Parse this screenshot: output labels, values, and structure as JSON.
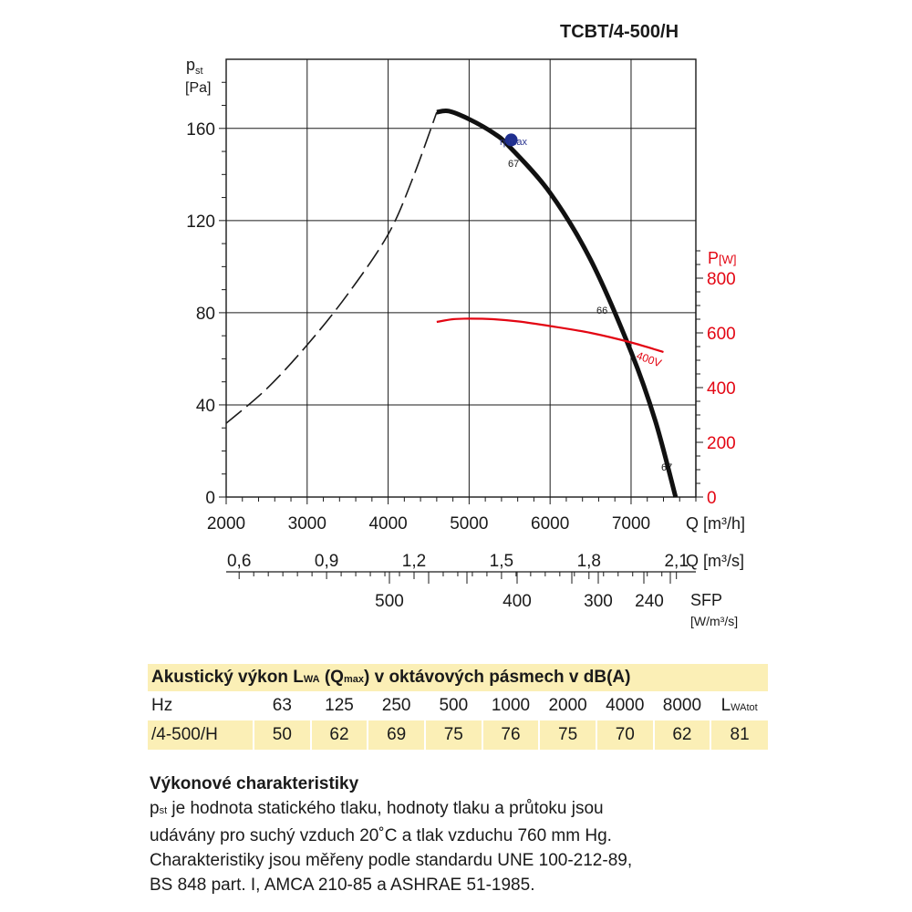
{
  "model_title": "TCBT/4-500/H",
  "chart_data": {
    "type": "line",
    "title": "TCBT/4-500/H",
    "y_left": {
      "label": "p",
      "label_sub": "st",
      "unit": "[Pa]",
      "ticks": [
        "0",
        "40",
        "80",
        "120",
        "160"
      ],
      "range": [
        0,
        190
      ]
    },
    "y_right": {
      "label": "P",
      "unit": "[W]",
      "ticks": [
        "0",
        "200",
        "400",
        "600",
        "800"
      ],
      "range": [
        0,
        800
      ],
      "color": "#e30613"
    },
    "x_main": {
      "label": "Q [m³/h]",
      "ticks": [
        "2000",
        "3000",
        "4000",
        "5000",
        "6000",
        "7000"
      ],
      "range": [
        2000,
        7800
      ]
    },
    "x_second": {
      "label": "Q [m³/s]",
      "ticks": [
        "0,6",
        "0,9",
        "1,2",
        "1,5",
        "1,8",
        "2,1"
      ]
    },
    "x_third": {
      "label": "SFP",
      "unit": "[W/m³/s]",
      "ticks": [
        "500",
        "400",
        "300",
        "240"
      ]
    },
    "grid": true,
    "series": [
      {
        "style": "dashed",
        "color": "#1a1a1a",
        "points": [
          [
            2000,
            32
          ],
          [
            2500,
            47
          ],
          [
            3000,
            66
          ],
          [
            3500,
            88
          ],
          [
            4000,
            114
          ],
          [
            4300,
            138
          ],
          [
            4600,
            167
          ]
        ]
      },
      {
        "style": "solid",
        "color": "#111111",
        "points": [
          [
            4600,
            167
          ],
          [
            4750,
            167.5
          ],
          [
            5000,
            164
          ],
          [
            5300,
            158
          ],
          [
            5500,
            152
          ],
          [
            6000,
            132
          ],
          [
            6500,
            103
          ],
          [
            7000,
            63
          ],
          [
            7300,
            33
          ],
          [
            7550,
            0
          ]
        ]
      },
      {
        "name": "400V",
        "axis": "right",
        "color": "#e30613",
        "points": [
          [
            4600,
            640
          ],
          [
            4800,
            650
          ],
          [
            5000,
            652
          ],
          [
            5300,
            650
          ],
          [
            5600,
            642
          ],
          [
            6000,
            625
          ],
          [
            6500,
            600
          ],
          [
            7000,
            565
          ],
          [
            7400,
            530
          ]
        ]
      }
    ],
    "annotations": [
      {
        "text": "η max",
        "color": "#2a3590"
      },
      {
        "text": "67"
      },
      {
        "text": "66"
      },
      {
        "text": "67"
      }
    ],
    "eta_max_point": [
      5520,
      155
    ]
  },
  "acoustic": {
    "title_pre": "Akustický výkon L",
    "title_sub1": "WA",
    "title_mid": " (Q",
    "title_sub2": "max",
    "title_post": ") v oktávových pásmech v dB(A)",
    "hz_label": "Hz",
    "bands": [
      "63",
      "125",
      "250",
      "500",
      "1000",
      "2000",
      "4000",
      "8000"
    ],
    "total_label": "L",
    "total_sub": "WAtot",
    "row_label": "/4-500/H",
    "values": [
      "50",
      "62",
      "69",
      "75",
      "76",
      "75",
      "70",
      "62",
      "81"
    ]
  },
  "performance": {
    "title": "Výkonové charakteristiky",
    "lead_symbol": "p",
    "lead_sub": "st",
    "line1": " je hodnota statického tlaku, hodnoty tlaku a průtoku jsou",
    "line2": "udávány pro suchý vzduch 20˚C a tlak vzduchu 760 mm Hg.",
    "line3": "Charakteristiky jsou měřeny podle standardu UNE 100-212-89,",
    "line4": "BS 848 part. I, AMCA 210-85 a ASHRAE 51-1985."
  }
}
